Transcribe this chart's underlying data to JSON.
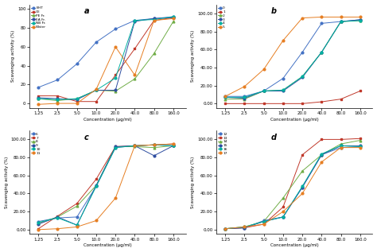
{
  "x": [
    1.25,
    2.5,
    5.0,
    10.0,
    20.0,
    40.0,
    80.0,
    160.0
  ],
  "panel_a": {
    "label": "a",
    "series": {
      "BHT": {
        "color": "#4472C4",
        "marker": "o",
        "values": [
          17,
          25,
          42,
          65,
          79,
          88,
          90,
          92
        ]
      },
      "CE": {
        "color": "#C0392B",
        "marker": "s",
        "values": [
          8,
          8,
          2,
          2,
          30,
          58,
          88,
          91
        ]
      },
      "PE Fr.": {
        "color": "#70AD47",
        "marker": "^",
        "values": [
          5,
          3,
          5,
          14,
          13,
          26,
          53,
          87
        ]
      },
      "EA Fr.": {
        "color": "#2E4DA0",
        "marker": "o",
        "values": [
          6,
          5,
          4,
          14,
          14,
          87,
          90,
          91
        ]
      },
      "NB Fr.": {
        "color": "#00B0A0",
        "marker": "o",
        "values": [
          5,
          4,
          5,
          14,
          27,
          88,
          89,
          92
        ]
      },
      "Water": {
        "color": "#E67E22",
        "marker": "o",
        "values": [
          -1,
          0,
          0,
          15,
          60,
          30,
          88,
          90
        ]
      }
    },
    "ylabel": "Scavenging activity (%)",
    "xlabel": "Concentration (μg/ml)",
    "yticks": [
      0,
      20,
      40,
      60,
      80,
      100
    ],
    "ytick_labels": [
      "0",
      "20",
      "40",
      "60",
      "80",
      "100"
    ],
    "ylim": [
      -5,
      105
    ]
  },
  "panel_b": {
    "label": "b",
    "series": {
      "0": {
        "color": "#4472C4",
        "marker": "o",
        "values": [
          8,
          8,
          14,
          28,
          57,
          89,
          91,
          93
        ]
      },
      "1": {
        "color": "#C0392B",
        "marker": "s",
        "values": [
          0,
          0,
          0,
          0,
          0,
          2,
          5,
          14
        ]
      },
      "2": {
        "color": "#70AD47",
        "marker": "^",
        "values": [
          5,
          5,
          14,
          15,
          30,
          57,
          91,
          92
        ]
      },
      "3": {
        "color": "#2E4DA0",
        "marker": "o",
        "values": [
          7,
          6,
          14,
          14,
          29,
          57,
          91,
          93
        ]
      },
      "4": {
        "color": "#00B0A0",
        "marker": "o",
        "values": [
          7,
          7,
          14,
          15,
          30,
          57,
          91,
          92
        ]
      },
      "5": {
        "color": "#E67E22",
        "marker": "o",
        "values": [
          8,
          19,
          38,
          70,
          95,
          96,
          96,
          96
        ]
      }
    },
    "ylabel": "Scavenging activity (%)",
    "xlabel": "Concentration (μg/ml)",
    "yticks": [
      0.0,
      20.0,
      40.0,
      60.0,
      80.0,
      100.0
    ],
    "ytick_labels": [
      "0.00",
      "20.00",
      "40.00",
      "60.00",
      "80.00",
      "100.00"
    ],
    "ylim": [
      -5,
      110
    ]
  },
  "panel_c": {
    "label": "c",
    "series": {
      "6": {
        "color": "#4472C4",
        "marker": "o",
        "values": [
          9,
          13,
          14,
          48,
          91,
          93,
          94,
          93
        ]
      },
      "7": {
        "color": "#C0392B",
        "marker": "s",
        "values": [
          1,
          15,
          29,
          56,
          92,
          93,
          94,
          95
        ]
      },
      "8": {
        "color": "#70AD47",
        "marker": "^",
        "values": [
          7,
          14,
          26,
          49,
          92,
          92,
          91,
          93
        ]
      },
      "9": {
        "color": "#2E4DA0",
        "marker": "o",
        "values": [
          6,
          14,
          5,
          49,
          92,
          93,
          82,
          93
        ]
      },
      "10": {
        "color": "#00B0A0",
        "marker": "o",
        "values": [
          8,
          13,
          5,
          48,
          91,
          93,
          94,
          93
        ]
      },
      "11": {
        "color": "#E67E22",
        "marker": "o",
        "values": [
          0,
          1,
          3,
          10,
          35,
          93,
          94,
          95
        ]
      }
    },
    "ylabel": "Scavenging activity (%)",
    "xlabel": "Concentration (μg/ml)",
    "yticks": [
      0.0,
      20.0,
      40.0,
      60.0,
      80.0,
      100.0
    ],
    "ytick_labels": [
      "0.00",
      "20.00",
      "40.00",
      "60.00",
      "80.00",
      "100.00"
    ],
    "ylim": [
      -5,
      110
    ]
  },
  "panel_d": {
    "label": "d",
    "series": {
      "12": {
        "color": "#4472C4",
        "marker": "o",
        "values": [
          1,
          2,
          10,
          14,
          47,
          83,
          91,
          92
        ]
      },
      "13": {
        "color": "#C0392B",
        "marker": "s",
        "values": [
          1,
          2,
          6,
          25,
          83,
          100,
          100,
          101
        ]
      },
      "14": {
        "color": "#70AD47",
        "marker": "^",
        "values": [
          1,
          3,
          9,
          35,
          65,
          83,
          95,
          99
        ]
      },
      "15": {
        "color": "#2E4DA0",
        "marker": "o",
        "values": [
          1,
          2,
          9,
          14,
          47,
          83,
          93,
          93
        ]
      },
      "16": {
        "color": "#00B0A0",
        "marker": "o",
        "values": [
          1,
          3,
          9,
          14,
          48,
          84,
          93,
          92
        ]
      },
      "17": {
        "color": "#E67E22",
        "marker": "o",
        "values": [
          1,
          3,
          6,
          20,
          40,
          75,
          91,
          91
        ]
      }
    },
    "ylabel": "Scavenging activity (%)",
    "xlabel": "Concentration (μg/ml)",
    "yticks": [
      0.0,
      20.0,
      40.0,
      60.0,
      80.0,
      100.0
    ],
    "ytick_labels": [
      "0.00",
      "20.00",
      "40.00",
      "60.00",
      "80.00",
      "100.00"
    ],
    "ylim": [
      -5,
      110
    ]
  },
  "xtick_labels_a": [
    "1.25",
    "2.5",
    "5.0",
    "10.0",
    "20.0",
    "40.0",
    "80.0",
    "160.0"
  ],
  "xtick_labels_bcd": [
    "1.25",
    "2.5",
    "5.0",
    "10.0",
    "20.0",
    "40.0",
    "80.0",
    "160.0"
  ],
  "background": "#FFFFFF"
}
